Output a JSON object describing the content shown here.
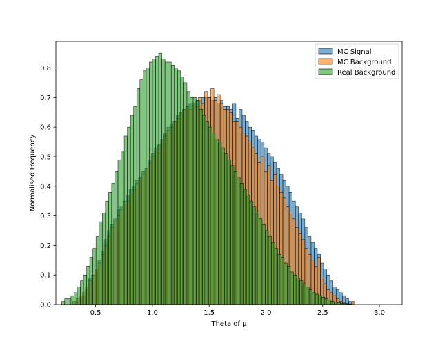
{
  "chart_data": {
    "type": "histogram",
    "title": "",
    "xlabel": "Theta of μ",
    "ylabel": "Normalised Frequency",
    "xlim": [
      0.15,
      3.2
    ],
    "ylim": [
      0,
      0.89
    ],
    "xticks": [
      0.5,
      1.0,
      1.5,
      2.0,
      2.5,
      3.0
    ],
    "xtick_labels": [
      "0.5",
      "1.0",
      "1.5",
      "2.0",
      "2.5",
      "3.0"
    ],
    "yticks": [
      0.0,
      0.1,
      0.2,
      0.3,
      0.4,
      0.5,
      0.6,
      0.7,
      0.8
    ],
    "ytick_labels": [
      "0.0",
      "0.1",
      "0.2",
      "0.3",
      "0.4",
      "0.5",
      "0.6",
      "0.7",
      "0.8"
    ],
    "grid": false,
    "legend_position": "top-right",
    "bin_width": 0.0276,
    "series": [
      {
        "name": "MC Signal",
        "color": "#1f77b4",
        "alpha": 0.6,
        "bin_start": 0.3,
        "values": [
          0.01,
          0.01,
          0.02,
          0.03,
          0.05,
          0.09,
          0.1,
          0.12,
          0.15,
          0.18,
          0.22,
          0.25,
          0.27,
          0.29,
          0.32,
          0.33,
          0.35,
          0.37,
          0.39,
          0.4,
          0.42,
          0.43,
          0.45,
          0.46,
          0.49,
          0.51,
          0.53,
          0.54,
          0.56,
          0.58,
          0.6,
          0.61,
          0.62,
          0.64,
          0.65,
          0.66,
          0.67,
          0.68,
          0.68,
          0.69,
          0.69,
          0.7,
          0.7,
          0.7,
          0.69,
          0.7,
          0.68,
          0.69,
          0.67,
          0.67,
          0.66,
          0.68,
          0.63,
          0.66,
          0.64,
          0.62,
          0.6,
          0.59,
          0.57,
          0.56,
          0.55,
          0.53,
          0.51,
          0.5,
          0.48,
          0.46,
          0.44,
          0.42,
          0.4,
          0.38,
          0.35,
          0.33,
          0.31,
          0.29,
          0.26,
          0.23,
          0.21,
          0.19,
          0.17,
          0.14,
          0.12,
          0.1,
          0.08,
          0.06,
          0.05,
          0.04,
          0.03,
          0.02,
          0.01,
          0.005
        ]
      },
      {
        "name": "MC Background",
        "color": "#ff7f0e",
        "alpha": 0.6,
        "bin_start": 0.3,
        "values": [
          0.01,
          0.02,
          0.03,
          0.04,
          0.06,
          0.08,
          0.1,
          0.12,
          0.14,
          0.17,
          0.2,
          0.23,
          0.26,
          0.28,
          0.3,
          0.32,
          0.34,
          0.35,
          0.37,
          0.39,
          0.41,
          0.43,
          0.44,
          0.46,
          0.48,
          0.5,
          0.52,
          0.54,
          0.55,
          0.57,
          0.59,
          0.6,
          0.62,
          0.63,
          0.65,
          0.66,
          0.67,
          0.66,
          0.68,
          0.67,
          0.7,
          0.68,
          0.72,
          0.7,
          0.73,
          0.69,
          0.71,
          0.68,
          0.66,
          0.66,
          0.65,
          0.62,
          0.62,
          0.6,
          0.58,
          0.57,
          0.55,
          0.53,
          0.51,
          0.48,
          0.5,
          0.45,
          0.47,
          0.42,
          0.44,
          0.4,
          0.38,
          0.36,
          0.33,
          0.31,
          0.29,
          0.26,
          0.24,
          0.22,
          0.19,
          0.17,
          0.15,
          0.13,
          0.16,
          0.09,
          0.07,
          0.05,
          0.04,
          0.03,
          0.02,
          0.01,
          0.005,
          0.003,
          0.002,
          0.01
        ]
      },
      {
        "name": "Real Background",
        "color": "#2ca02c",
        "alpha": 0.6,
        "bin_start": 0.2,
        "values": [
          0.01,
          0.02,
          0.02,
          0.03,
          0.04,
          0.06,
          0.08,
          0.1,
          0.13,
          0.16,
          0.19,
          0.23,
          0.28,
          0.31,
          0.35,
          0.38,
          0.41,
          0.45,
          0.49,
          0.52,
          0.57,
          0.6,
          0.64,
          0.67,
          0.73,
          0.76,
          0.79,
          0.8,
          0.82,
          0.83,
          0.84,
          0.85,
          0.83,
          0.82,
          0.82,
          0.81,
          0.8,
          0.79,
          0.77,
          0.75,
          0.72,
          0.7,
          0.7,
          0.69,
          0.66,
          0.64,
          0.62,
          0.6,
          0.58,
          0.56,
          0.55,
          0.53,
          0.51,
          0.49,
          0.47,
          0.45,
          0.43,
          0.41,
          0.39,
          0.37,
          0.35,
          0.33,
          0.31,
          0.29,
          0.27,
          0.25,
          0.23,
          0.21,
          0.19,
          0.17,
          0.16,
          0.14,
          0.13,
          0.11,
          0.1,
          0.09,
          0.08,
          0.07,
          0.06,
          0.05,
          0.04,
          0.035,
          0.03,
          0.025,
          0.02,
          0.015,
          0.01,
          0.008,
          0.006,
          0.004,
          0.003,
          0.002
        ]
      }
    ]
  }
}
